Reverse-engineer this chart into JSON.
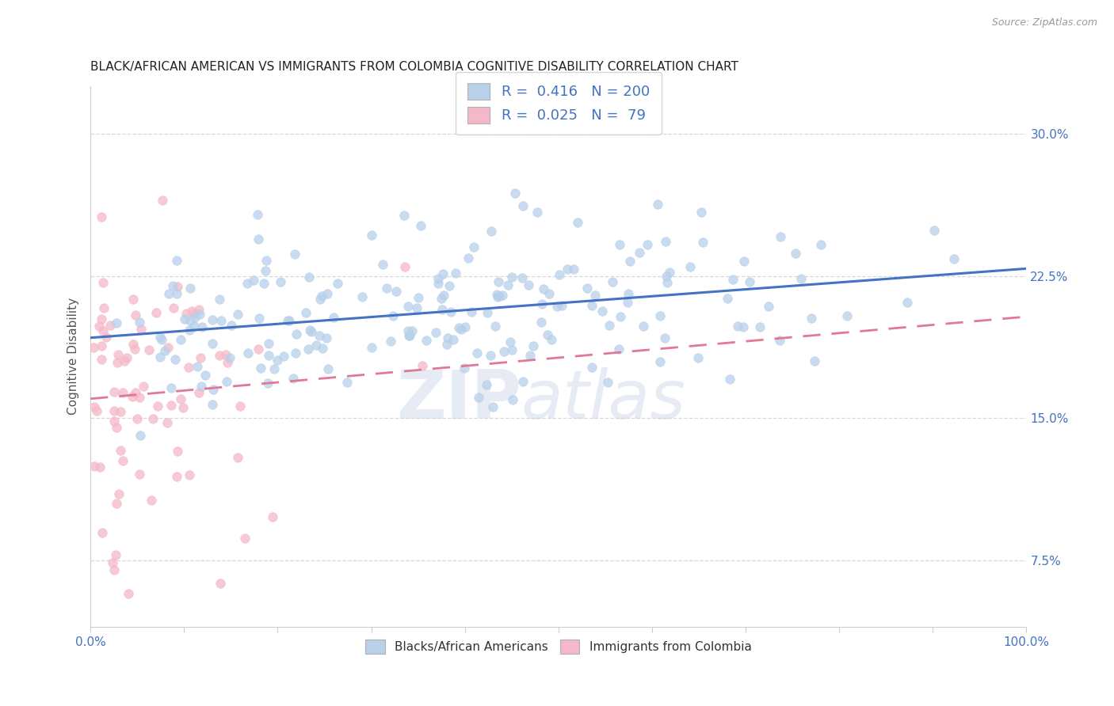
{
  "title": "BLACK/AFRICAN AMERICAN VS IMMIGRANTS FROM COLOMBIA COGNITIVE DISABILITY CORRELATION CHART",
  "source": "Source: ZipAtlas.com",
  "ylabel": "Cognitive Disability",
  "blue_R": 0.416,
  "blue_N": 200,
  "pink_R": 0.025,
  "pink_N": 79,
  "blue_dot_color": "#b8d0ea",
  "pink_dot_color": "#f5b8c8",
  "blue_line_color": "#4472c4",
  "pink_line_color": "#e07898",
  "legend_label_blue": "Blacks/African Americans",
  "legend_label_pink": "Immigrants from Colombia",
  "watermark_zip": "ZIP",
  "watermark_atlas": "atlas",
  "background_color": "#ffffff",
  "grid_color": "#d8d8d8",
  "title_color": "#222222",
  "axis_value_color": "#4472c4",
  "seed": 12,
  "xlim": [
    0.0,
    1.0
  ],
  "ylim": [
    0.04,
    0.325
  ]
}
